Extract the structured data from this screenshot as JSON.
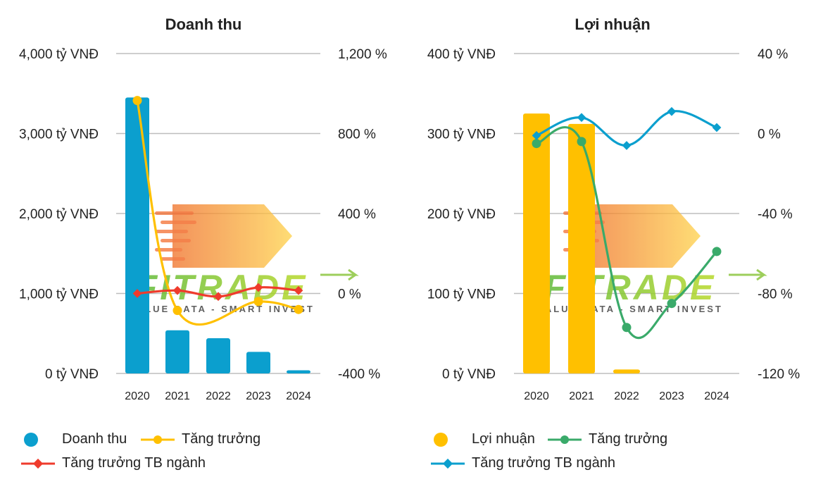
{
  "chart_data": [
    {
      "type": "bar",
      "title": "Doanh thu",
      "categories": [
        "2020",
        "2021",
        "2022",
        "2023",
        "2024"
      ],
      "y_left": {
        "ticks": [
          "0 tỷ VNĐ",
          "1,000 tỷ VNĐ",
          "2,000 tỷ VNĐ",
          "3,000 tỷ VNĐ",
          "4,000 tỷ VNĐ"
        ],
        "ylim": [
          0,
          4000
        ]
      },
      "y_right": {
        "ticks": [
          "-400 %",
          "0 %",
          "400 %",
          "800 %",
          "1,200 %"
        ],
        "ylim": [
          -400,
          1200
        ]
      },
      "grid": true,
      "legend_position": "bottom",
      "series": [
        {
          "name": "Doanh thu",
          "kind": "bar",
          "axis": "left",
          "color": "#0b9fce",
          "values": [
            3450,
            540,
            440,
            270,
            40
          ]
        },
        {
          "name": "Tăng trưởng",
          "kind": "line",
          "axis": "right",
          "color": "#ffc000",
          "marker": "circle",
          "smooth": true,
          "values": [
            965,
            -85,
            null,
            -40,
            -80
          ]
        },
        {
          "name": "Tăng trưởng TB ngành",
          "kind": "line",
          "axis": "right",
          "color": "#ef3b2c",
          "marker": "diamond",
          "smooth": true,
          "values": [
            0,
            15,
            -15,
            30,
            15
          ]
        }
      ]
    },
    {
      "type": "bar",
      "title": "Lợi nhuận",
      "categories": [
        "2020",
        "2021",
        "2022",
        "2023",
        "2024"
      ],
      "y_left": {
        "ticks": [
          "0 tỷ VNĐ",
          "100 tỷ VNĐ",
          "200 tỷ VNĐ",
          "300 tỷ VNĐ",
          "400 tỷ VNĐ"
        ],
        "ylim": [
          0,
          400
        ]
      },
      "y_right": {
        "ticks": [
          "-120 %",
          "-80 %",
          "-40 %",
          "0 %",
          "40 %"
        ],
        "ylim": [
          -120,
          40
        ]
      },
      "grid": true,
      "legend_position": "bottom",
      "series": [
        {
          "name": "Lợi nhuận",
          "kind": "bar",
          "axis": "left",
          "color": "#ffc000",
          "values": [
            325,
            312,
            5,
            0,
            0
          ]
        },
        {
          "name": "Tăng trưởng",
          "kind": "line",
          "axis": "right",
          "color": "#3aaa6a",
          "marker": "circle",
          "smooth": true,
          "values": [
            -5,
            -4,
            -97,
            -85,
            -59
          ]
        },
        {
          "name": "Tăng trưởng TB ngành",
          "kind": "line",
          "axis": "right",
          "color": "#0b9fce",
          "marker": "diamond",
          "smooth": true,
          "values": [
            -1,
            8,
            -6,
            11,
            3
          ]
        }
      ]
    }
  ],
  "watermark": {
    "brand": "FITRADE",
    "tagline": "VALUE DATA - SMART INVEST"
  }
}
